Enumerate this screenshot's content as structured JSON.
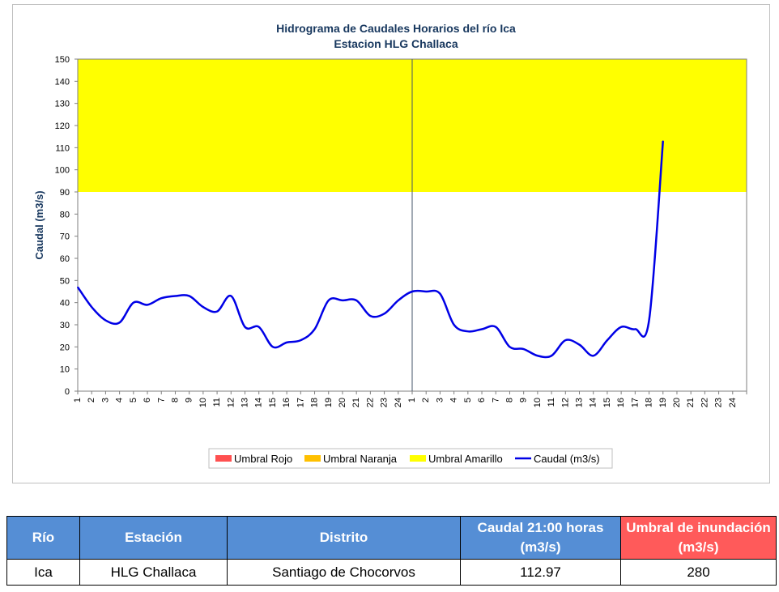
{
  "chart_data": {
    "type": "line",
    "title": "Hidrograma de Caudales Horarios del río Ica",
    "subtitle": "Estacion HLG Challaca",
    "ylabel": "Caudal  (m3/s)",
    "xlabel": "",
    "ylim": [
      0,
      150
    ],
    "y_ticks": [
      "0",
      "10",
      "20",
      "30",
      "40",
      "50",
      "60",
      "70",
      "80",
      "90",
      "100",
      "110",
      "120",
      "130",
      "140",
      "150"
    ],
    "x_ticks": [
      "1",
      "2",
      "3",
      "4",
      "5",
      "6",
      "7",
      "8",
      "9",
      "10",
      "11",
      "12",
      "13",
      "14",
      "15",
      "16",
      "17",
      "18",
      "19",
      "20",
      "21",
      "22",
      "23",
      "24",
      "1",
      "2",
      "3",
      "4",
      "5",
      "6",
      "7",
      "8",
      "9",
      "10",
      "11",
      "12",
      "13",
      "14",
      "15",
      "16",
      "17",
      "18",
      "19",
      "20",
      "21",
      "22",
      "23",
      "24"
    ],
    "day_separator_after_index": 24,
    "thresholds": [
      {
        "name": "Umbral Amarillo",
        "from": 90,
        "to": 150,
        "color": "#ffff00"
      }
    ],
    "series": [
      {
        "name": "Caudal (m3/s)",
        "color": "#0000e6",
        "values": [
          47,
          38,
          32,
          31,
          40,
          39,
          42,
          43,
          43,
          38,
          36,
          43,
          29,
          29,
          20,
          22,
          23,
          28,
          41,
          41,
          41,
          34,
          35,
          41,
          45,
          45,
          44,
          30,
          27,
          28,
          29,
          20,
          19,
          16,
          16,
          23,
          21,
          16,
          23,
          29,
          28,
          32,
          113
        ]
      }
    ],
    "legend": {
      "placement": "bottom",
      "items": [
        {
          "label": "Umbral Rojo",
          "color": "#ff5050",
          "kind": "box"
        },
        {
          "label": "Umbral Naranja",
          "color": "#ffc000",
          "kind": "box"
        },
        {
          "label": "Umbral Amarillo",
          "color": "#ffff00",
          "kind": "box"
        },
        {
          "label": "Caudal (m3/s)",
          "color": "#0000e6",
          "kind": "line"
        }
      ]
    },
    "grid": false
  },
  "table": {
    "headers": {
      "rio": "Río",
      "estacion": "Estación",
      "distrito": "Distrito",
      "caudal": "Caudal 21:00 horas (m3/s)",
      "umbral": "Umbral de inundación (m3/s)"
    },
    "row": {
      "rio": "Ica",
      "estacion": "HLG Challaca",
      "distrito": "Santiago de Chocorvos",
      "caudal": "112.97",
      "umbral": "280"
    },
    "colors": {
      "header": "#558ed5",
      "header_alert": "#ff5a5a"
    }
  }
}
